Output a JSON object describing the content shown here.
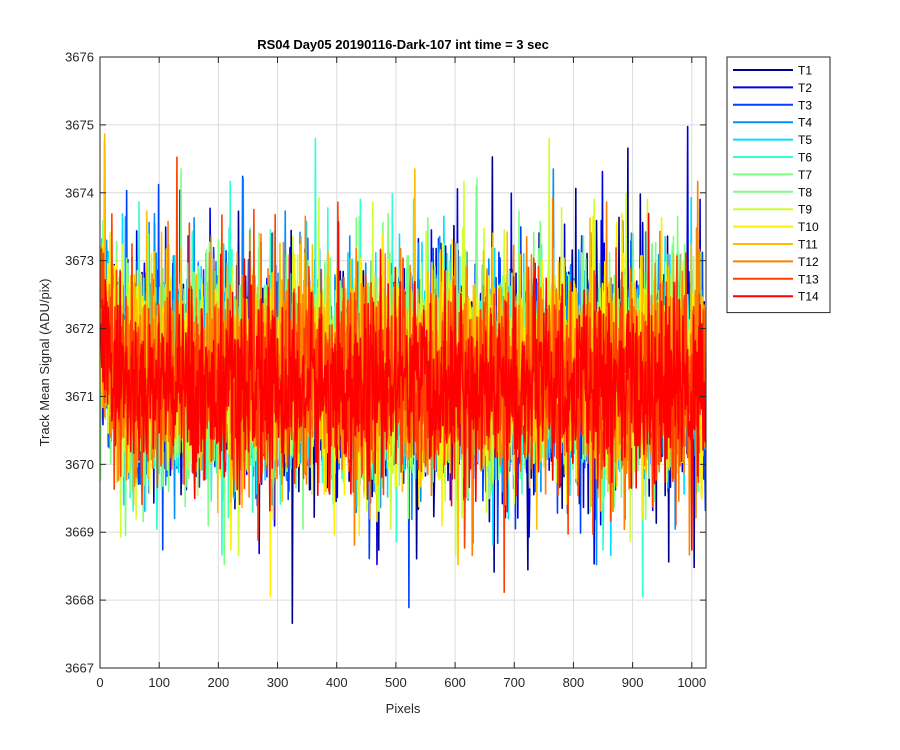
{
  "chart_data": {
    "type": "line",
    "title": "RS04 Day05 20190116-Dark-107 int time = 3 sec",
    "xlabel": "Pixels",
    "ylabel": "Track Mean Signal (ADU/pix)",
    "xlim": [
      0,
      1024
    ],
    "ylim": [
      3667,
      3676
    ],
    "xticks": [
      0,
      100,
      200,
      300,
      400,
      500,
      600,
      700,
      800,
      900,
      1000
    ],
    "yticks": [
      3667,
      3668,
      3669,
      3670,
      3671,
      3672,
      3673,
      3674,
      3675,
      3676
    ],
    "grid": true,
    "legend_position": "outside-top-right",
    "n_pixels": 1024,
    "series": [
      {
        "name": "T1",
        "color": "#00008F",
        "mean": 3671.3,
        "spread": 1.05
      },
      {
        "name": "T2",
        "color": "#0000DF",
        "mean": 3671.3,
        "spread": 1.05
      },
      {
        "name": "T3",
        "color": "#0040FF",
        "mean": 3671.3,
        "spread": 1.05
      },
      {
        "name": "T4",
        "color": "#0090FF",
        "mean": 3671.3,
        "spread": 1.0
      },
      {
        "name": "T5",
        "color": "#00DFFF",
        "mean": 3671.3,
        "spread": 1.0
      },
      {
        "name": "T6",
        "color": "#30FFCF",
        "mean": 3671.3,
        "spread": 1.0
      },
      {
        "name": "T7",
        "color": "#80FF80",
        "mean": 3671.3,
        "spread": 1.0
      },
      {
        "name": "T8",
        "color": "#7FFF80",
        "mean": 3671.3,
        "spread": 1.0
      },
      {
        "name": "T9",
        "color": "#CFFF30",
        "mean": 3671.3,
        "spread": 1.0
      },
      {
        "name": "T10",
        "color": "#FFEF00",
        "mean": 3671.3,
        "spread": 1.0
      },
      {
        "name": "T11",
        "color": "#FFBF00",
        "mean": 3671.3,
        "spread": 1.0
      },
      {
        "name": "T12",
        "color": "#FF8000",
        "mean": 3671.3,
        "spread": 1.0
      },
      {
        "name": "T13",
        "color": "#FF4000",
        "mean": 3671.2,
        "spread": 0.95
      },
      {
        "name": "T14",
        "color": "#FF0000",
        "mean": 3671.1,
        "spread": 0.85
      }
    ]
  }
}
